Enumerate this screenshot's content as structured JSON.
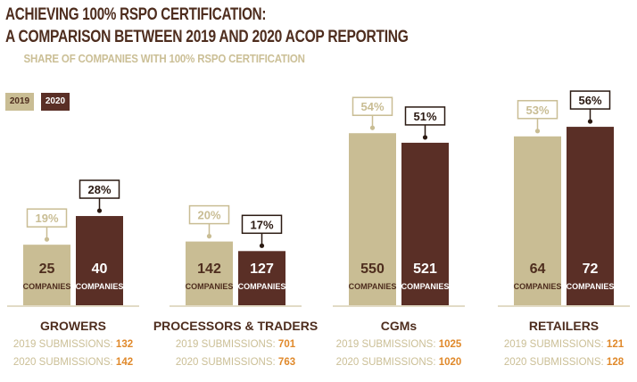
{
  "title_line1": "ACHIEVING 100% RSPO CERTIFICATION:",
  "title_line2": "A COMPARISON BETWEEN 2019 AND 2020 ACOP REPORTING",
  "subtitle": "SHARE OF COMPANIES WITH 100% RSPO CERTIFICATION",
  "legend": {
    "y2019": "2019",
    "y2020": "2020"
  },
  "colors": {
    "c2019": "#c9bd94",
    "c2020": "#5a2f26",
    "title": "#4e2d1e",
    "submission_num": "#e0892b",
    "submission_text": "#cbbf96"
  },
  "unit_label": "COMPANIES",
  "chart_data": {
    "type": "bar",
    "title": "ACHIEVING 100% RSPO CERTIFICATION: A COMPARISON BETWEEN 2019 AND 2020 ACOP REPORTING",
    "subtitle": "SHARE OF COMPANIES WITH 100% RSPO CERTIFICATION",
    "categories": [
      "GROWERS",
      "PROCESSORS & TRADERS",
      "CGMs",
      "RETAILERS"
    ],
    "ylim": [
      0,
      60
    ],
    "series": [
      {
        "name": "2019",
        "values": [
          19,
          20,
          54,
          53
        ],
        "labels": [
          "19%",
          "20%",
          "54%",
          "53%"
        ],
        "companies": [
          "25",
          "142",
          "550",
          "64"
        ]
      },
      {
        "name": "2020",
        "values": [
          28,
          17,
          51,
          56
        ],
        "labels": [
          "28%",
          "17%",
          "51%",
          "56%"
        ],
        "companies": [
          "40",
          "127",
          "521",
          "72"
        ]
      }
    ],
    "submissions": [
      {
        "line2019": "2019 SUBMISSIONS: ",
        "n2019": "132",
        "line2020": "2020 SUBMISSIONS: ",
        "n2020": "142"
      },
      {
        "line2019": "2019 SUBMISSIONS: ",
        "n2019": "701",
        "line2020": "2020 SUBMISSIONS: ",
        "n2020": "763"
      },
      {
        "line2019": "2019 SUBMISSIONS: ",
        "n2019": "1025",
        "line2020": "2020 SUBMISSIONS: ",
        "n2020": "1020"
      },
      {
        "line2019": "2019 SUBMISSIONS: ",
        "n2019": "121",
        "line2020": "2020 SUBMISSIONS: ",
        "n2020": "128"
      }
    ],
    "legend": "top-left",
    "grid": false
  }
}
